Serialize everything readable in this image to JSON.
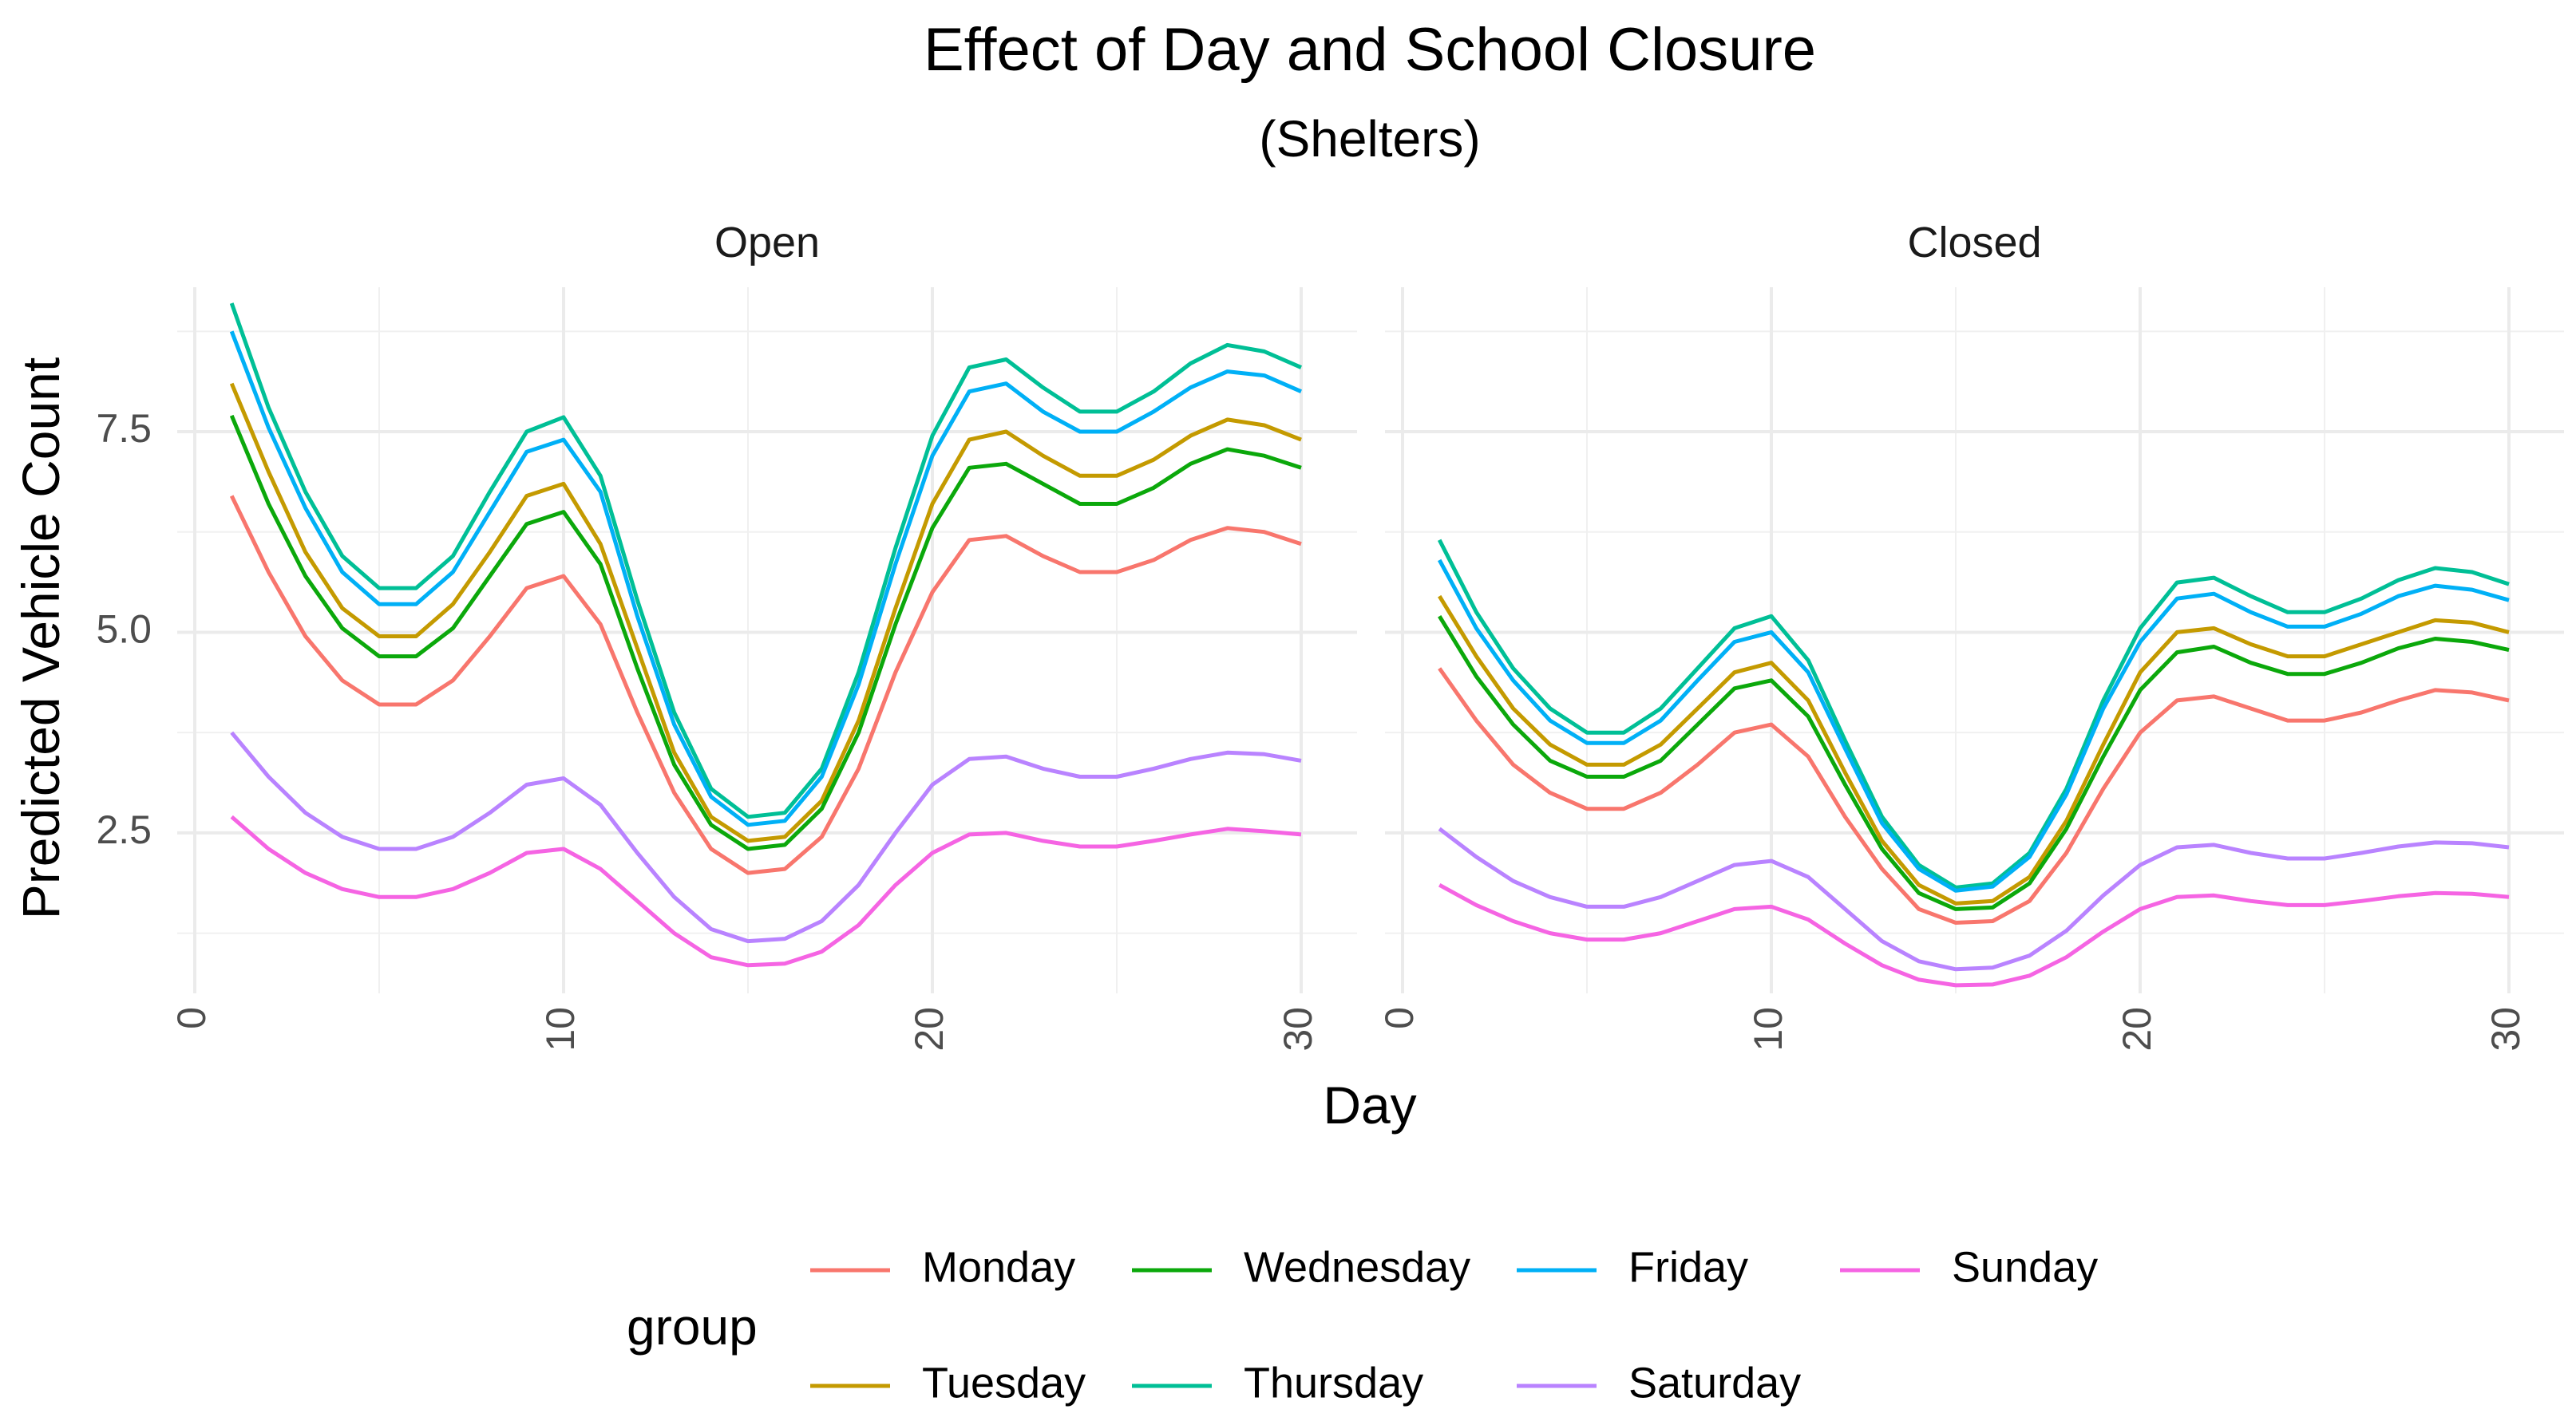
{
  "chart_data": {
    "type": "line",
    "title": "Effect of Day and School Closure",
    "subtitle": "(Shelters)",
    "xlabel": "Day",
    "ylabel": "Predicted Vehicle Count",
    "xlim": [
      0,
      30
    ],
    "ylim": [
      0.5,
      9.3
    ],
    "x_ticks": [
      "0",
      "10",
      "20",
      "30"
    ],
    "y_ticks": [
      "2.5",
      "5.0",
      "7.5"
    ],
    "grid": true,
    "legend": {
      "title": "group",
      "position": "bottom"
    },
    "x": [
      1,
      2,
      3,
      4,
      5,
      6,
      7,
      8,
      9,
      10,
      11,
      12,
      13,
      14,
      15,
      16,
      17,
      18,
      19,
      20,
      21,
      22,
      23,
      24,
      25,
      26,
      27,
      28,
      29,
      30
    ],
    "panels": [
      {
        "label": "Open",
        "series": [
          {
            "name": "Monday",
            "color": "#F8766D",
            "values": [
              6.7,
              5.75,
              4.95,
              4.4,
              4.1,
              4.1,
              4.4,
              4.95,
              5.55,
              5.7,
              5.1,
              4.0,
              3.0,
              2.3,
              2.0,
              2.05,
              2.45,
              3.3,
              4.5,
              5.5,
              6.15,
              6.2,
              5.95,
              5.75,
              5.75,
              5.9,
              6.15,
              6.3,
              6.25,
              6.1
            ]
          },
          {
            "name": "Tuesday",
            "color": "#C49A00",
            "values": [
              8.1,
              7.0,
              6.0,
              5.3,
              4.95,
              4.95,
              5.35,
              6.0,
              6.7,
              6.85,
              6.1,
              4.8,
              3.5,
              2.7,
              2.4,
              2.45,
              2.9,
              3.9,
              5.3,
              6.6,
              7.4,
              7.5,
              7.2,
              6.95,
              6.95,
              7.15,
              7.45,
              7.65,
              7.58,
              7.4
            ]
          },
          {
            "name": "Wednesday",
            "color": "#0BA80B",
            "values": [
              7.7,
              6.6,
              5.7,
              5.05,
              4.7,
              4.7,
              5.05,
              5.7,
              6.35,
              6.5,
              5.85,
              4.55,
              3.35,
              2.6,
              2.3,
              2.35,
              2.8,
              3.75,
              5.1,
              6.3,
              7.05,
              7.1,
              6.85,
              6.6,
              6.6,
              6.8,
              7.1,
              7.28,
              7.2,
              7.05
            ]
          },
          {
            "name": "Thursday",
            "color": "#00BF96",
            "values": [
              9.1,
              7.8,
              6.75,
              5.95,
              5.55,
              5.55,
              5.95,
              6.75,
              7.5,
              7.68,
              6.95,
              5.4,
              4.0,
              3.05,
              2.7,
              2.75,
              3.3,
              4.5,
              6.05,
              7.45,
              8.3,
              8.4,
              8.05,
              7.75,
              7.75,
              8.0,
              8.35,
              8.58,
              8.5,
              8.3
            ]
          },
          {
            "name": "Friday",
            "color": "#00B0F6",
            "values": [
              8.75,
              7.55,
              6.55,
              5.75,
              5.35,
              5.35,
              5.75,
              6.5,
              7.25,
              7.4,
              6.75,
              5.2,
              3.85,
              2.95,
              2.6,
              2.65,
              3.2,
              4.35,
              5.85,
              7.2,
              8.0,
              8.1,
              7.75,
              7.5,
              7.5,
              7.75,
              8.05,
              8.25,
              8.2,
              8.0
            ]
          },
          {
            "name": "Saturday",
            "color": "#B983FF",
            "values": [
              3.75,
              3.2,
              2.75,
              2.45,
              2.3,
              2.3,
              2.45,
              2.75,
              3.1,
              3.18,
              2.85,
              2.25,
              1.7,
              1.3,
              1.15,
              1.18,
              1.4,
              1.85,
              2.5,
              3.1,
              3.42,
              3.45,
              3.3,
              3.2,
              3.2,
              3.3,
              3.42,
              3.5,
              3.48,
              3.4
            ]
          },
          {
            "name": "Sunday",
            "color": "#F564E3",
            "values": [
              2.7,
              2.3,
              2.0,
              1.8,
              1.7,
              1.7,
              1.8,
              2.0,
              2.25,
              2.3,
              2.05,
              1.65,
              1.25,
              0.95,
              0.85,
              0.87,
              1.02,
              1.35,
              1.85,
              2.25,
              2.48,
              2.5,
              2.4,
              2.33,
              2.33,
              2.4,
              2.48,
              2.55,
              2.52,
              2.48
            ]
          }
        ]
      },
      {
        "label": "Closed",
        "series": [
          {
            "name": "Monday",
            "color": "#F8766D",
            "values": [
              4.55,
              3.9,
              3.35,
              3.0,
              2.8,
              2.8,
              3.0,
              3.35,
              3.75,
              3.85,
              3.45,
              2.7,
              2.05,
              1.55,
              1.38,
              1.4,
              1.65,
              2.25,
              3.05,
              3.75,
              4.15,
              4.2,
              4.05,
              3.9,
              3.9,
              4.0,
              4.15,
              4.28,
              4.25,
              4.15
            ]
          },
          {
            "name": "Tuesday",
            "color": "#C49A00",
            "values": [
              5.45,
              4.7,
              4.05,
              3.6,
              3.35,
              3.35,
              3.6,
              4.05,
              4.5,
              4.62,
              4.15,
              3.25,
              2.4,
              1.85,
              1.62,
              1.65,
              1.95,
              2.65,
              3.6,
              4.5,
              5.0,
              5.05,
              4.85,
              4.7,
              4.7,
              4.85,
              5.0,
              5.15,
              5.12,
              5.0
            ]
          },
          {
            "name": "Wednesday",
            "color": "#0BA80B",
            "values": [
              5.2,
              4.45,
              3.85,
              3.4,
              3.2,
              3.2,
              3.4,
              3.85,
              4.3,
              4.4,
              3.95,
              3.1,
              2.3,
              1.75,
              1.55,
              1.57,
              1.87,
              2.55,
              3.45,
              4.28,
              4.75,
              4.82,
              4.62,
              4.48,
              4.48,
              4.62,
              4.8,
              4.92,
              4.88,
              4.78
            ]
          },
          {
            "name": "Thursday",
            "color": "#00BF96",
            "values": [
              6.15,
              5.25,
              4.55,
              4.05,
              3.75,
              3.75,
              4.05,
              4.55,
              5.05,
              5.2,
              4.65,
              3.65,
              2.7,
              2.1,
              1.82,
              1.87,
              2.25,
              3.05,
              4.15,
              5.05,
              5.62,
              5.68,
              5.45,
              5.25,
              5.25,
              5.42,
              5.65,
              5.8,
              5.75,
              5.6
            ]
          },
          {
            "name": "Friday",
            "color": "#00B0F6",
            "values": [
              5.9,
              5.05,
              4.4,
              3.9,
              3.62,
              3.62,
              3.9,
              4.4,
              4.88,
              5.0,
              4.5,
              3.55,
              2.62,
              2.05,
              1.78,
              1.83,
              2.2,
              2.98,
              4.05,
              4.88,
              5.42,
              5.48,
              5.25,
              5.07,
              5.07,
              5.23,
              5.45,
              5.58,
              5.53,
              5.4
            ]
          },
          {
            "name": "Saturday",
            "color": "#B983FF",
            "values": [
              2.55,
              2.2,
              1.9,
              1.7,
              1.58,
              1.58,
              1.7,
              1.9,
              2.1,
              2.15,
              1.95,
              1.55,
              1.15,
              0.9,
              0.8,
              0.82,
              0.97,
              1.28,
              1.72,
              2.1,
              2.32,
              2.35,
              2.25,
              2.18,
              2.18,
              2.25,
              2.33,
              2.38,
              2.37,
              2.32
            ]
          },
          {
            "name": "Sunday",
            "color": "#F564E3",
            "values": [
              1.85,
              1.6,
              1.4,
              1.25,
              1.17,
              1.17,
              1.25,
              1.4,
              1.55,
              1.58,
              1.42,
              1.12,
              0.85,
              0.67,
              0.6,
              0.61,
              0.72,
              0.95,
              1.27,
              1.55,
              1.7,
              1.72,
              1.65,
              1.6,
              1.6,
              1.65,
              1.71,
              1.75,
              1.74,
              1.7
            ]
          }
        ]
      }
    ]
  }
}
